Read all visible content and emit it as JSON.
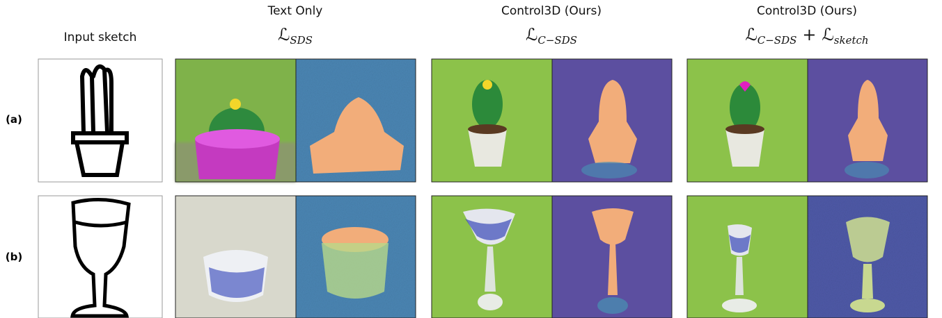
{
  "columns": [
    {
      "title": "Input sketch"
    },
    {
      "title": "Text Only",
      "loss": [
        {
          "symbol": "ℒ",
          "subscript": "SDS"
        }
      ]
    },
    {
      "title": "Control3D (Ours)",
      "loss": [
        {
          "symbol": "ℒ",
          "subscript": "C−SDS"
        }
      ]
    },
    {
      "title": "Control3D (Ours)",
      "loss": [
        {
          "symbol": "ℒ",
          "subscript": "C−SDS"
        },
        {
          "operator": "+"
        },
        {
          "symbol": "ℒ",
          "subscript": "sketch"
        }
      ]
    }
  ],
  "rows": [
    {
      "label": "(a)"
    },
    {
      "label": "(b)"
    }
  ]
}
